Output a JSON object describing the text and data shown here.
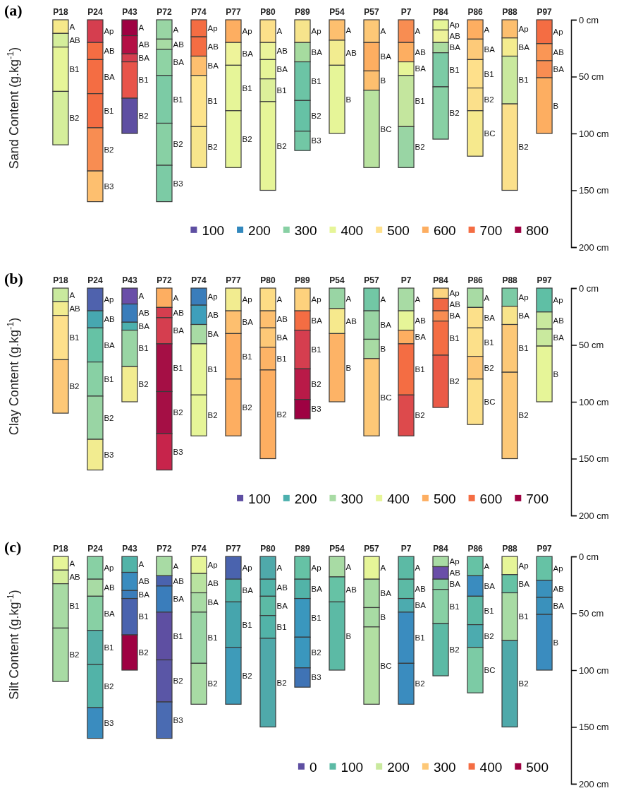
{
  "chart_data": [
    {
      "type": "bar",
      "title": "(a)",
      "ylabel": "Sand Content (g.kg$^{-1}$)",
      "stacked": true,
      "legend": "bottom right",
      "categories": [
        "P18",
        "P24",
        "P43",
        "P72",
        "P74",
        "P77",
        "P80",
        "P89",
        "P54",
        "P57",
        "P7",
        "P84",
        "P86",
        "P88",
        "P97"
      ],
      "ylim": [
        200,
        0
      ],
      "yticks": [
        {
          "value": 0,
          "label": "0 cm"
        },
        {
          "value": 50,
          "label": "50 cm"
        },
        {
          "value": 100,
          "label": "100 cm"
        },
        {
          "value": 150,
          "label": "150 cm"
        },
        {
          "value": 200,
          "label": "200 cm"
        }
      ],
      "series": [
        {
          "values": [
            12,
            20,
            14,
            17,
            15,
            20,
            20,
            20,
            18,
            20,
            20,
            9,
            17,
            16,
            21
          ],
          "value_labels": [
            "A",
            "Ap",
            "A",
            "A",
            "Ap",
            "Ap",
            "A",
            "Ap",
            "A",
            "A",
            "A",
            "Ap",
            "A",
            "Ap",
            "Ap"
          ],
          "colors": [
            "#f6e98a",
            "#d53e4f",
            "#9e0142",
            "#99d5a4",
            "#f46d43",
            "#fdae61",
            "#fce08a",
            "#f6e48c",
            "#fdbf6f",
            "#fdc877",
            "#f88d52",
            "#e6f598",
            "#fdae61",
            "#fdbf6f",
            "#f46d43"
          ]
        },
        {
          "values": [
            12,
            15,
            16,
            9,
            17,
            20,
            15,
            17,
            22,
            25,
            17,
            11,
            18,
            16,
            15
          ],
          "value_labels": [
            "AB",
            "AB",
            "AB",
            "AB",
            "AB",
            "BA",
            "AB",
            "BA",
            "AB",
            "BA",
            "AB",
            "AB",
            "BA",
            "BA",
            "AB"
          ],
          "colors": [
            "#d5ee9b",
            "#f46d43",
            "#b40f45",
            "#a8dba4",
            "#f46d43",
            "#eef39a",
            "#ebf39a",
            "#a6db9f",
            "#f2ec90",
            "#fdae61",
            "#fdae61",
            "#eef39a",
            "#fdca79",
            "#f4ec8f",
            "#fa9655"
          ]
        },
        {
          "values": [
            39,
            30,
            7,
            23,
            17,
            40,
            17,
            34,
            60,
            17,
            12,
            9,
            25,
            42,
            15
          ],
          "value_labels": [
            "B1",
            "BA",
            "BA",
            "BA",
            "BA",
            "B1",
            "BA",
            "B1",
            "B",
            "B",
            "BA",
            "BA",
            "B1",
            "B1",
            "BA"
          ],
          "colors": [
            "#e6f598",
            "#f46d43",
            "#d53e4f",
            "#8fd3a4",
            "#fdbf6f",
            "#e6f598",
            "#e6f598",
            "#6cc4a5",
            "#e6f598",
            "#fdbf6f",
            "#e6f598",
            "#aadca0",
            "#fee08b",
            "#c9e99e",
            "#f88d52"
          ]
        },
        {
          "values": [
            47,
            30,
            32,
            42,
            45,
            50,
            20,
            27,
            null,
            68,
            45,
            30,
            20,
            76,
            49
          ],
          "value_labels": [
            "B2",
            "B1",
            "B1",
            "B1",
            "B1",
            "B2",
            "B1",
            "B2",
            null,
            "BC",
            "B1",
            "B1",
            "B2",
            "B2",
            "B"
          ],
          "colors": [
            "#d5ee9b",
            "#f46d43",
            "#e8544a",
            "#7ccba5",
            "#fde38b",
            "#e6f598",
            "#dcf09a",
            "#66c2a5",
            null,
            "#b9e3a0",
            "#c4e69e",
            "#7ccba5",
            "#fbe08b",
            "#fbe08b",
            "#fdae61"
          ]
        },
        {
          "values": [
            null,
            38,
            31,
            37,
            36,
            null,
            78,
            17,
            null,
            null,
            36,
            46,
            40,
            null,
            null
          ],
          "value_labels": [
            null,
            "B2",
            "B2",
            "B2",
            "B2",
            null,
            "B2",
            "B3",
            null,
            null,
            "B2",
            "B2",
            "BC",
            null,
            null
          ],
          "colors": [
            null,
            "#f88d52",
            "#5e4fa2",
            "#88d0a4",
            "#f7e58c",
            null,
            "#e6f598",
            "#72c7a5",
            null,
            null,
            "#99d5a4",
            "#88d0a4",
            "#f6e98d",
            null,
            null
          ]
        },
        {
          "values": [
            null,
            27,
            null,
            32,
            null,
            null,
            null,
            null,
            null,
            null,
            null,
            null,
            null,
            null,
            null
          ],
          "value_labels": [
            null,
            "B3",
            null,
            "B3",
            null,
            null,
            null,
            null,
            null,
            null,
            null,
            null,
            null,
            null,
            null
          ],
          "colors": [
            null,
            "#fdbf6f",
            null,
            "#7ccba5",
            null,
            null,
            null,
            null,
            null,
            null,
            null,
            null,
            null,
            null,
            null
          ]
        },
        {
          "name": "100",
          "color": "#5e4fa2",
          "values": [
            null,
            null,
            null,
            null,
            null,
            null,
            null,
            null,
            null,
            null,
            null,
            null,
            null,
            null,
            null
          ]
        },
        {
          "name": "200",
          "color": "#3288bd",
          "values": [
            null,
            null,
            null,
            null,
            null,
            null,
            null,
            null,
            null,
            null,
            null,
            null,
            null,
            null,
            null
          ]
        },
        {
          "name": "300",
          "color": "#88d0a4",
          "values": [
            null,
            null,
            null,
            null,
            null,
            null,
            null,
            null,
            null,
            null,
            null,
            null,
            null,
            null,
            null
          ]
        },
        {
          "name": "400",
          "color": "#e6f598",
          "values": [
            null,
            null,
            null,
            null,
            null,
            null,
            null,
            null,
            null,
            null,
            null,
            null,
            null,
            null,
            null
          ]
        },
        {
          "name": "500",
          "color": "#fee08b",
          "values": [
            null,
            null,
            null,
            null,
            null,
            null,
            null,
            null,
            null,
            null,
            null,
            null,
            null,
            null,
            null
          ]
        },
        {
          "name": "600",
          "color": "#fdae61",
          "values": [
            null,
            null,
            null,
            null,
            null,
            null,
            null,
            null,
            null,
            null,
            null,
            null,
            null,
            null,
            null
          ]
        },
        {
          "name": "700",
          "color": "#f46d43",
          "values": [
            null,
            null,
            null,
            null,
            null,
            null,
            null,
            null,
            null,
            null,
            null,
            null,
            null,
            null,
            null
          ]
        },
        {
          "name": "800",
          "color": "#9e0142",
          "values": [
            null,
            null,
            null,
            null,
            null,
            null,
            null,
            null,
            null,
            null,
            null,
            null,
            null,
            null,
            null
          ]
        }
      ]
    },
    {
      "type": "bar",
      "title": "(b)",
      "ylabel": "Clay Content (g.kg$^{-1}$)",
      "stacked": true,
      "legend": "bottom right",
      "categories": [
        "P18",
        "P24",
        "P43",
        "P72",
        "P74",
        "P77",
        "P80",
        "P89",
        "P54",
        "P57",
        "P7",
        "P84",
        "P86",
        "P88",
        "P97"
      ],
      "ylim": [
        200,
        0
      ],
      "yticks": [
        {
          "value": 0,
          "label": "0 cm"
        },
        {
          "value": 50,
          "label": "50 cm"
        },
        {
          "value": 100,
          "label": "100 cm"
        },
        {
          "value": 150,
          "label": "150 cm"
        },
        {
          "value": 200,
          "label": "200 cm"
        }
      ],
      "series": [
        {
          "values": [
            12,
            20,
            14,
            17,
            15,
            20,
            20,
            20,
            18,
            20,
            20,
            9,
            17,
            16,
            21
          ],
          "value_labels": [
            "A",
            "Ap",
            "A",
            "A",
            "Ap",
            "Ap",
            "A",
            "Ap",
            "A",
            "A",
            "A",
            "Ap",
            "A",
            "Ap",
            "Ap"
          ],
          "colors": [
            "#c9e99e",
            "#4f62ad",
            "#6a4ea8",
            "#fdae61",
            "#3a7dbb",
            "#f2ec90",
            "#fddc85",
            "#fdd17d",
            "#99d5a4",
            "#72c7a5",
            "#a8dba4",
            "#fdd480",
            "#a8dba4",
            "#7ccba5",
            "#5fbfa5"
          ]
        },
        {
          "values": [
            12,
            15,
            16,
            9,
            17,
            20,
            15,
            17,
            22,
            25,
            17,
            11,
            18,
            16,
            15
          ],
          "value_labels": [
            "AB",
            "AB",
            "AB",
            "AB",
            "AB",
            "BA",
            "AB",
            "BA",
            "AB",
            "BA",
            "AB",
            "AB",
            "BA",
            "BA",
            "AB"
          ],
          "colors": [
            "#f2ec90",
            "#47a7b0",
            "#3a7dbb",
            "#d53e4f",
            "#3e9fbb",
            "#fdbf6f",
            "#fdbf6f",
            "#f46d43",
            "#f6e98d",
            "#99d5a4",
            "#e6f598",
            "#f06744",
            "#fce08a",
            "#f8e48b",
            "#c9e99e"
          ]
        },
        {
          "values": [
            39,
            30,
            7,
            23,
            17,
            40,
            17,
            34,
            60,
            17,
            12,
            9,
            25,
            42,
            15
          ],
          "value_labels": [
            "B1",
            "BA",
            "BA",
            "BA",
            "BA",
            "B1",
            "BA",
            "B1",
            "B",
            "B",
            "BA",
            "BA",
            "B1",
            "B1",
            "BA"
          ],
          "colors": [
            "#fee08b",
            "#66c2a5",
            "#4cb0ae",
            "#d53e4f",
            "#a8dba4",
            "#fdae61",
            "#fdc877",
            "#d53e4f",
            "#fdb366",
            "#a8dba4",
            "#fdae61",
            "#f88d52",
            "#fce08a",
            "#fdc877",
            "#c9e99e"
          ]
        },
        {
          "values": [
            47,
            30,
            32,
            42,
            45,
            50,
            20,
            27,
            null,
            68,
            45,
            30,
            20,
            76,
            49
          ],
          "value_labels": [
            "B2",
            "B1",
            "B1",
            "B1",
            "B1",
            "B2",
            "B1",
            "B2",
            null,
            "BC",
            "B1",
            "B1",
            "B2",
            "B2",
            "B"
          ],
          "colors": [
            "#fdc877",
            "#88d0a4",
            "#99d5a4",
            "#a50f45",
            "#e6f598",
            "#fdae61",
            "#fdb366",
            "#b91a48",
            null,
            "#fdc877",
            "#f46d43",
            "#f46d43",
            "#fdc877",
            "#fdc877",
            "#e6f598"
          ]
        },
        {
          "values": [
            null,
            38,
            31,
            37,
            36,
            null,
            78,
            17,
            null,
            null,
            36,
            46,
            40,
            null,
            null
          ],
          "value_labels": [
            null,
            "B2",
            "B2",
            "B2",
            "B2",
            null,
            "B2",
            "B3",
            null,
            null,
            "B2",
            "B2",
            "BC",
            null,
            null
          ],
          "colors": [
            null,
            "#99d5a4",
            "#f2ec90",
            "#a50f45",
            "#e6f598",
            null,
            "#fdae61",
            "#9e0142",
            null,
            null,
            "#dd4a4c",
            "#ea5a47",
            "#fce08a",
            null,
            null
          ]
        },
        {
          "values": [
            null,
            27,
            null,
            32,
            null,
            null,
            null,
            null,
            null,
            null,
            null,
            null,
            null,
            null,
            null
          ],
          "value_labels": [
            null,
            "B3",
            null,
            "B3",
            null,
            null,
            null,
            null,
            null,
            null,
            null,
            null,
            null,
            null,
            null
          ],
          "colors": [
            null,
            "#f2ec90",
            null,
            "#c7244b",
            null,
            null,
            null,
            null,
            null,
            null,
            null,
            null,
            null,
            null,
            null
          ]
        },
        {
          "name": "100",
          "color": "#5e4fa2",
          "values": [
            null,
            null,
            null,
            null,
            null,
            null,
            null,
            null,
            null,
            null,
            null,
            null,
            null,
            null,
            null
          ]
        },
        {
          "name": "200",
          "color": "#4cb0ae",
          "values": [
            null,
            null,
            null,
            null,
            null,
            null,
            null,
            null,
            null,
            null,
            null,
            null,
            null,
            null,
            null
          ]
        },
        {
          "name": "300",
          "color": "#a8dba4",
          "values": [
            null,
            null,
            null,
            null,
            null,
            null,
            null,
            null,
            null,
            null,
            null,
            null,
            null,
            null,
            null
          ]
        },
        {
          "name": "400",
          "color": "#e6f598",
          "values": [
            null,
            null,
            null,
            null,
            null,
            null,
            null,
            null,
            null,
            null,
            null,
            null,
            null,
            null,
            null
          ]
        },
        {
          "name": "500",
          "color": "#fdae61",
          "values": [
            null,
            null,
            null,
            null,
            null,
            null,
            null,
            null,
            null,
            null,
            null,
            null,
            null,
            null,
            null
          ]
        },
        {
          "name": "600",
          "color": "#f46d43",
          "values": [
            null,
            null,
            null,
            null,
            null,
            null,
            null,
            null,
            null,
            null,
            null,
            null,
            null,
            null,
            null
          ]
        },
        {
          "name": "700",
          "color": "#9e0142",
          "values": [
            null,
            null,
            null,
            null,
            null,
            null,
            null,
            null,
            null,
            null,
            null,
            null,
            null,
            null,
            null
          ]
        }
      ]
    },
    {
      "type": "bar",
      "title": "(c)",
      "ylabel": "Silt Content (g.kg$^{-1}$)",
      "stacked": true,
      "legend": "bottom right",
      "categories": [
        "P18",
        "P24",
        "P43",
        "P72",
        "P74",
        "P77",
        "P80",
        "P89",
        "P54",
        "P57",
        "P7",
        "P84",
        "P86",
        "P88",
        "P97"
      ],
      "ylim": [
        200,
        0
      ],
      "yticks": [
        {
          "value": 0,
          "label": "0 cm"
        },
        {
          "value": 50,
          "label": "50 cm"
        },
        {
          "value": 100,
          "label": "100 cm"
        },
        {
          "value": 150,
          "label": "150 cm"
        },
        {
          "value": 200,
          "label": "200 cm"
        }
      ],
      "series": [
        {
          "values": [
            12,
            20,
            14,
            17,
            15,
            20,
            20,
            20,
            18,
            20,
            20,
            9,
            17,
            16,
            21
          ],
          "value_labels": [
            "A",
            "Ap",
            "A",
            "A",
            "Ap",
            "Ap",
            "A",
            "Ap",
            "A",
            "A",
            "A",
            "Ap",
            "A",
            "Ap",
            "Ap"
          ],
          "colors": [
            "#e6f598",
            "#88d0a4",
            "#52b3a8",
            "#a8dba4",
            "#e6f598",
            "#4a63ae",
            "#4fa9aa",
            "#66c2a5",
            "#a8dba4",
            "#e6f598",
            "#5cbaa5",
            "#a8dba4",
            "#66c2a5",
            "#e6f598",
            "#66c2a5"
          ]
        },
        {
          "values": [
            12,
            15,
            16,
            9,
            17,
            20,
            15,
            17,
            22,
            25,
            17,
            11,
            18,
            16,
            15
          ],
          "value_labels": [
            "AB",
            "AB",
            "AB",
            "AB",
            "AB",
            "BA",
            "AB",
            "BA",
            "AB",
            "BA",
            "AB",
            "AB",
            "BA",
            "BA",
            "AB"
          ],
          "colors": [
            "#d5ee9b",
            "#a8dba4",
            "#3a8cbf",
            "#4a63ae",
            "#b9e3a0",
            "#52b3a8",
            "#52b3a8",
            "#52b3a8",
            "#66c2a5",
            "#a8dba4",
            "#5cbaa5",
            "#6a4ea8",
            "#3a8cbf",
            "#66c2a5",
            "#3a91bc"
          ]
        },
        {
          "values": [
            39,
            30,
            7,
            23,
            17,
            40,
            17,
            34,
            60,
            17,
            12,
            9,
            25,
            42,
            15
          ],
          "value_labels": [
            "B1",
            "BA",
            "BA",
            "BA",
            "BA",
            "B1",
            "BA",
            "B1",
            "B",
            "B",
            "BA",
            "BA",
            "B1",
            "B1",
            "BA"
          ],
          "colors": [
            "#a8dba4",
            "#88d0a4",
            "#3a7dbb",
            "#3a7dbb",
            "#a8dba4",
            "#46a5ad",
            "#5cbaa5",
            "#3a97be",
            "#5cbaa5",
            "#a8dba4",
            "#4cabaf",
            "#88d0a4",
            "#5cbaa5",
            "#a8dba4",
            "#3a91bc"
          ]
        },
        {
          "values": [
            47,
            30,
            32,
            42,
            45,
            50,
            20,
            27,
            null,
            68,
            45,
            30,
            20,
            76,
            49
          ],
          "value_labels": [
            "B2",
            "B1",
            "B1",
            "B1",
            "B1",
            "B2",
            "B1",
            "B2",
            null,
            "BC",
            "B1",
            "B1",
            "B2",
            "B2",
            "B"
          ],
          "colors": [
            "#a8dba4",
            "#55b0a8",
            "#4a63ae",
            "#5e4fa2",
            "#99d5a4",
            "#3e9bb9",
            "#52b3a8",
            "#3a97be",
            null,
            "#b2dfa2",
            "#3a8cbf",
            "#88d0a4",
            "#4cabaf",
            "#4fa9aa",
            "#3a8cbf"
          ]
        },
        {
          "values": [
            null,
            38,
            31,
            37,
            36,
            null,
            78,
            17,
            null,
            null,
            36,
            46,
            40,
            null,
            null
          ],
          "value_labels": [
            null,
            "B2",
            "B2",
            "B2",
            "B2",
            null,
            "B2",
            "B3",
            null,
            null,
            "B2",
            "B2",
            "BC",
            null,
            null
          ],
          "colors": [
            null,
            "#52b3a8",
            "#9e0142",
            "#5a56a6",
            "#a8dba4",
            null,
            "#4fa9aa",
            "#3f73b5",
            null,
            null,
            "#3a8cbf",
            "#5cbaa5",
            "#7ccba5",
            null,
            null
          ]
        },
        {
          "values": [
            null,
            27,
            null,
            32,
            null,
            null,
            null,
            null,
            null,
            null,
            null,
            null,
            null,
            null,
            null
          ],
          "value_labels": [
            null,
            "B3",
            null,
            "B3",
            null,
            null,
            null,
            null,
            null,
            null,
            null,
            null,
            null,
            null,
            null
          ],
          "colors": [
            null,
            "#3a8cbf",
            null,
            "#4a6bb2",
            null,
            null,
            null,
            null,
            null,
            null,
            null,
            null,
            null,
            null,
            null
          ]
        },
        {
          "name": "0",
          "color": "#5e4fa2",
          "values": [
            null,
            null,
            null,
            null,
            null,
            null,
            null,
            null,
            null,
            null,
            null,
            null,
            null,
            null,
            null
          ]
        },
        {
          "name": "100",
          "color": "#5cbaa5",
          "values": [
            null,
            null,
            null,
            null,
            null,
            null,
            null,
            null,
            null,
            null,
            null,
            null,
            null,
            null,
            null
          ]
        },
        {
          "name": "200",
          "color": "#c9e99e",
          "values": [
            null,
            null,
            null,
            null,
            null,
            null,
            null,
            null,
            null,
            null,
            null,
            null,
            null,
            null,
            null
          ]
        },
        {
          "name": "300",
          "color": "#fdc877",
          "values": [
            null,
            null,
            null,
            null,
            null,
            null,
            null,
            null,
            null,
            null,
            null,
            null,
            null,
            null,
            null
          ]
        },
        {
          "name": "400",
          "color": "#f46d43",
          "values": [
            null,
            null,
            null,
            null,
            null,
            null,
            null,
            null,
            null,
            null,
            null,
            null,
            null,
            null,
            null
          ]
        },
        {
          "name": "500",
          "color": "#9e0142",
          "values": [
            null,
            null,
            null,
            null,
            null,
            null,
            null,
            null,
            null,
            null,
            null,
            null,
            null,
            null,
            null
          ]
        }
      ]
    }
  ]
}
